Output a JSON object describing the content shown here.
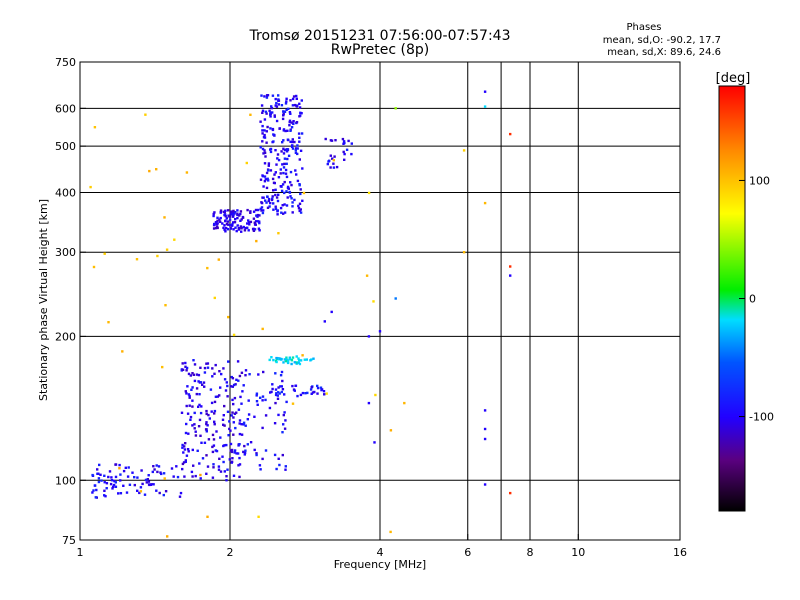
{
  "chart_data": {
    "type": "scatter",
    "title": "Tromsø 20151231 07:56:00-07:57:43",
    "subtitle": "RwPretec (8p)",
    "xlabel": "Frequency [MHz]",
    "ylabel": "Stationary phase Virtual Height [km]",
    "x_scale": "log2",
    "y_scale": "log",
    "xlim": [
      1,
      16
    ],
    "ylim": [
      75,
      750
    ],
    "x_ticks": [
      1,
      2,
      4,
      6,
      8,
      10,
      16
    ],
    "x_tick_labels": [
      "1",
      "2",
      "4",
      "6",
      "8",
      "10",
      "16"
    ],
    "x_grid": [
      2,
      4,
      6,
      7,
      8,
      10
    ],
    "y_ticks": [
      75,
      100,
      200,
      300,
      400,
      500,
      600,
      750
    ],
    "y_tick_labels": [
      "75",
      "100",
      "200",
      "300",
      "400",
      "500",
      "600",
      "750"
    ],
    "grid": true,
    "phase_stats": {
      "heading": "Phases",
      "line_o": "mean, sd,O: -90.2, 17.7",
      "line_x": "mean, sd,X:  89.6, 24.6"
    },
    "colorbar": {
      "unit": "[deg]",
      "range": [
        -180,
        180
      ],
      "ticks": [
        100,
        0,
        -100
      ],
      "tick_labels": [
        "100",
        "0",
        "-100"
      ]
    },
    "clusters": [
      {
        "freq_range": [
          1.05,
          1.6
        ],
        "height_range": [
          92,
          108
        ],
        "phase": -100,
        "count": 90,
        "seed": 11
      },
      {
        "freq_range": [
          1.6,
          2.1
        ],
        "height_range": [
          100,
          180
        ],
        "phase": -105,
        "count": 190,
        "seed": 12
      },
      {
        "freq_range": [
          2.0,
          2.6
        ],
        "height_range": [
          105,
          170
        ],
        "phase": -100,
        "count": 90,
        "seed": 13
      },
      {
        "freq_range": [
          2.4,
          3.0
        ],
        "height_range": [
          175,
          182
        ],
        "phase": -30,
        "count": 40,
        "seed": 14
      },
      {
        "freq_range": [
          2.4,
          3.1
        ],
        "height_range": [
          150,
          158
        ],
        "phase": -95,
        "count": 35,
        "seed": 15
      },
      {
        "freq_range": [
          1.85,
          2.3
        ],
        "height_range": [
          330,
          370
        ],
        "phase": -105,
        "count": 120,
        "seed": 16
      },
      {
        "freq_range": [
          2.3,
          2.8
        ],
        "height_range": [
          360,
          640
        ],
        "phase": -100,
        "count": 260,
        "seed": 17
      },
      {
        "freq_range": [
          3.1,
          3.55
        ],
        "height_range": [
          450,
          520
        ],
        "phase": -100,
        "count": 25,
        "seed": 18
      },
      {
        "freq_range": [
          1.05,
          4.5
        ],
        "height_range": [
          76,
          620
        ],
        "phase": 95,
        "count": 45,
        "seed": 19
      }
    ],
    "points": [
      {
        "x": 6.5,
        "y": 650,
        "phase": -100
      },
      {
        "x": 6.5,
        "y": 605,
        "phase": -30
      },
      {
        "x": 7.3,
        "y": 530,
        "phase": 160
      },
      {
        "x": 7.3,
        "y": 280,
        "phase": 160
      },
      {
        "x": 7.3,
        "y": 268,
        "phase": -100
      },
      {
        "x": 6.5,
        "y": 140,
        "phase": -100
      },
      {
        "x": 6.5,
        "y": 128,
        "phase": -100
      },
      {
        "x": 6.5,
        "y": 122,
        "phase": -100
      },
      {
        "x": 6.5,
        "y": 98,
        "phase": -100
      },
      {
        "x": 7.3,
        "y": 94,
        "phase": 160
      },
      {
        "x": 4.3,
        "y": 600,
        "phase": 40
      },
      {
        "x": 4.3,
        "y": 240,
        "phase": -60
      },
      {
        "x": 4.0,
        "y": 205,
        "phase": -100
      },
      {
        "x": 3.8,
        "y": 200,
        "phase": -100
      },
      {
        "x": 3.2,
        "y": 225,
        "phase": -100
      },
      {
        "x": 3.1,
        "y": 215,
        "phase": -100
      },
      {
        "x": 3.9,
        "y": 120,
        "phase": -100
      },
      {
        "x": 3.8,
        "y": 145,
        "phase": -100
      },
      {
        "x": 5.9,
        "y": 490,
        "phase": 90
      },
      {
        "x": 6.5,
        "y": 380,
        "phase": 100
      },
      {
        "x": 5.9,
        "y": 300,
        "phase": 100
      },
      {
        "x": 4.2,
        "y": 78,
        "phase": 100
      }
    ]
  }
}
